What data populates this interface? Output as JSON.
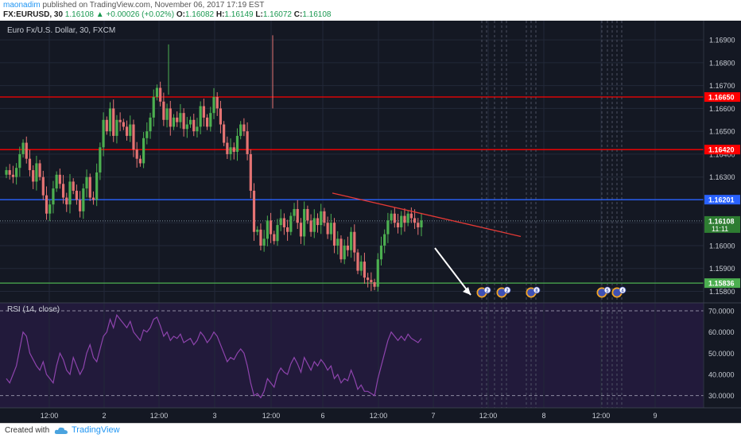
{
  "header": {
    "line1": {
      "author": "maonadim",
      "text": " published on TradingView.com, November 06, 2017 17:19 EST"
    },
    "line2": {
      "symbol": "FX:EURUSD, 30",
      "price": "1.16108",
      "change": "▲ +0.00026 (+0.02%)",
      "o_label": "O:",
      "o": "1.16082",
      "h_label": "H:",
      "h": "1.16149",
      "l_label": "L:",
      "l": "1.16072",
      "c_label": "C:",
      "c": "1.16108"
    }
  },
  "footer": {
    "created_with": "Created with",
    "brand": "TradingView",
    "logo_icon": "tradingview-cloud-icon"
  },
  "colors": {
    "background": "#141823",
    "rsi_background": "#221a3b",
    "up_candle": "#4caf50",
    "down_candle": "#e57373",
    "resistance": "#ff0000",
    "pivot": "#2962ff",
    "support": "#4caf50",
    "trendline": "#e53935",
    "rsi_line": "#8e44ad",
    "price_tag": "#2e7d32"
  },
  "chart_data": [
    {
      "type": "candlestick",
      "title": "Euro Fx/U.S. Dollar, 30, FXCM",
      "x_ticks": [
        "12:00",
        "2",
        "12:00",
        "3",
        "12:00",
        "6",
        "12:00",
        "7",
        "12:00",
        "8",
        "12:00",
        "9"
      ],
      "y_ticks": [
        "1.16900",
        "1.16800",
        "1.16700",
        "1.16600",
        "1.16500",
        "1.16400",
        "1.16300",
        "1.16200",
        "1.16100",
        "1.16000",
        "1.15900",
        "1.15800"
      ],
      "ylim": [
        1.1576,
        1.1697
      ],
      "horizontal_lines": [
        {
          "label": "1.16650",
          "value": 1.1665,
          "color": "#ff0000"
        },
        {
          "label": "1.16420",
          "value": 1.1642,
          "color": "#ff0000"
        },
        {
          "label": "1.16201",
          "value": 1.16201,
          "color": "#2962ff"
        },
        {
          "label": "1.15836",
          "value": 1.15836,
          "color": "#4caf50"
        }
      ],
      "current_price": {
        "label": "1.16108",
        "value": 1.16108,
        "countdown": "11:11"
      },
      "trendline": {
        "from": [
          0,
          1.1623
        ],
        "to": [
          1,
          1.1604
        ]
      },
      "arrow": "down",
      "event_flags": [
        "2",
        "2",
        "8",
        "5",
        "4"
      ],
      "closes": [
        1.1633,
        1.1631,
        1.163,
        1.1634,
        1.164,
        1.1645,
        1.1638,
        1.1633,
        1.1628,
        1.1636,
        1.163,
        1.1622,
        1.1614,
        1.1618,
        1.1625,
        1.1631,
        1.1627,
        1.1621,
        1.1618,
        1.1628,
        1.1624,
        1.162,
        1.1615,
        1.1625,
        1.163,
        1.1621,
        1.162,
        1.1632,
        1.1643,
        1.1655,
        1.165,
        1.166,
        1.1648,
        1.1655,
        1.1654,
        1.1652,
        1.1648,
        1.1653,
        1.1642,
        1.1638,
        1.1636,
        1.1647,
        1.165,
        1.1656,
        1.1665,
        1.1669,
        1.1663,
        1.1655,
        1.166,
        1.1652,
        1.1656,
        1.1654,
        1.1658,
        1.1651,
        1.1653,
        1.1655,
        1.165,
        1.1652,
        1.1661,
        1.1656,
        1.1652,
        1.1658,
        1.1665,
        1.166,
        1.1653,
        1.1645,
        1.164,
        1.1643,
        1.1641,
        1.1648,
        1.1653,
        1.165,
        1.164,
        1.1624,
        1.1606,
        1.1607,
        1.16,
        1.1603,
        1.1611,
        1.1605,
        1.1602,
        1.1609,
        1.1612,
        1.1608,
        1.1606,
        1.1613,
        1.1616,
        1.161,
        1.1604,
        1.1616,
        1.1611,
        1.1606,
        1.1612,
        1.1609,
        1.1615,
        1.161,
        1.1605,
        1.161,
        1.16,
        1.1603,
        1.1594,
        1.16,
        1.1598,
        1.1606,
        1.1597,
        1.1589,
        1.1593,
        1.1586,
        1.1585,
        1.1584,
        1.1582,
        1.1594,
        1.16,
        1.1605,
        1.1611,
        1.1614,
        1.161,
        1.1608,
        1.1613,
        1.161,
        1.1614,
        1.1612,
        1.161,
        1.1608,
        1.1611
      ]
    },
    {
      "type": "line",
      "title": "RSI (14, close)",
      "y_ticks": [
        "70.0000",
        "60.0000",
        "50.0000",
        "40.0000",
        "30.0000"
      ],
      "ylim": [
        25,
        73
      ],
      "bands": [
        70,
        30
      ],
      "values": [
        38,
        36,
        40,
        44,
        52,
        60,
        58,
        50,
        47,
        44,
        42,
        46,
        40,
        38,
        36,
        44,
        50,
        47,
        42,
        40,
        48,
        44,
        40,
        43,
        50,
        54,
        48,
        46,
        52,
        58,
        60,
        66,
        62,
        68,
        66,
        64,
        62,
        65,
        60,
        58,
        56,
        61,
        60,
        62,
        66,
        67,
        63,
        58,
        60,
        56,
        58,
        57,
        59,
        55,
        56,
        57,
        54,
        56,
        60,
        58,
        55,
        57,
        60,
        58,
        54,
        50,
        46,
        48,
        47,
        50,
        52,
        50,
        44,
        36,
        30,
        31,
        29,
        32,
        38,
        36,
        34,
        40,
        43,
        41,
        40,
        45,
        48,
        45,
        41,
        48,
        45,
        42,
        46,
        44,
        47,
        45,
        42,
        44,
        38,
        40,
        36,
        38,
        37,
        42,
        38,
        33,
        35,
        32,
        32,
        31,
        30,
        38,
        44,
        50,
        56,
        60,
        58,
        56,
        58,
        56,
        59,
        57,
        56,
        55,
        57
      ]
    }
  ]
}
